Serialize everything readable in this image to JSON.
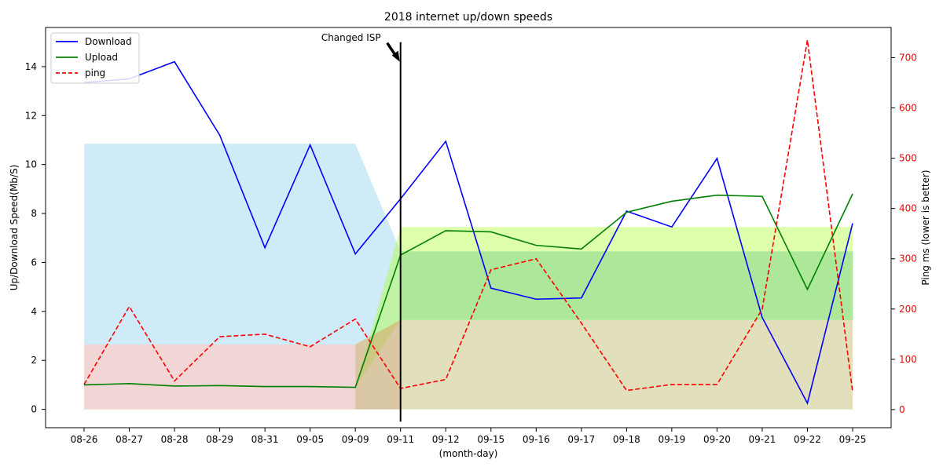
{
  "chart_data": {
    "type": "line",
    "title": "2018 internet up/down speeds",
    "xlabel": "(month-day)",
    "ylabel": "Up/Download Speed(Mb/S)",
    "y2label": "Ping ms (lower is better)",
    "categories": [
      "08-26",
      "08-27",
      "08-28",
      "08-29",
      "08-31",
      "09-05",
      "09-09",
      "09-11",
      "09-12",
      "09-15",
      "09-16",
      "09-17",
      "09-18",
      "09-19",
      "09-20",
      "09-21",
      "09-22",
      "09-25"
    ],
    "ylim": [
      -0.75,
      15.6
    ],
    "y2lim": [
      -36,
      760
    ],
    "yticks": [
      0,
      2,
      4,
      6,
      8,
      10,
      12,
      14
    ],
    "y2ticks": [
      0,
      100,
      200,
      300,
      400,
      500,
      600,
      700
    ],
    "series": [
      {
        "name": "Download",
        "axis": "left",
        "color": "#0000ff",
        "dash": "solid",
        "values": [
          13.35,
          13.5,
          14.2,
          11.2,
          6.6,
          10.8,
          6.35,
          8.6,
          10.95,
          4.95,
          4.5,
          4.55,
          8.1,
          7.45,
          10.25,
          3.75,
          0.25,
          7.6
        ]
      },
      {
        "name": "Upload",
        "axis": "left",
        "color": "#008000",
        "dash": "solid",
        "values": [
          1.0,
          1.05,
          0.95,
          0.97,
          0.93,
          0.93,
          0.9,
          6.3,
          7.3,
          7.25,
          6.7,
          6.55,
          8.05,
          8.5,
          8.75,
          8.7,
          4.9,
          8.8
        ]
      },
      {
        "name": "ping",
        "axis": "right",
        "color": "#ff0000",
        "dash": "dashed",
        "values": [
          50,
          205,
          57,
          145,
          150,
          125,
          180,
          42,
          60,
          278,
          300,
          172,
          38,
          50,
          50,
          200,
          735,
          35
        ]
      }
    ],
    "bands": [
      {
        "axis": "left",
        "color": "#87ceeb",
        "opacity": 0.4,
        "from": 0,
        "to": 7,
        "low": [
          2.65,
          2.65,
          2.65,
          2.65,
          2.65,
          2.65,
          2.65,
          3.65
        ],
        "high": [
          10.85,
          10.85,
          10.85,
          10.85,
          10.85,
          10.85,
          10.85,
          6.45
        ]
      },
      {
        "axis": "left",
        "color": "#adff2f",
        "opacity": 0.4,
        "from": 6,
        "to": 17,
        "low": [
          0.9,
          3.65,
          3.65,
          3.65,
          3.65,
          3.65,
          3.65,
          3.65,
          3.65,
          3.65,
          3.65,
          3.65
        ],
        "high": [
          0.9,
          7.45,
          7.45,
          7.45,
          7.45,
          7.45,
          7.45,
          7.45,
          7.45,
          7.45,
          7.45,
          7.45
        ]
      },
      {
        "axis": "left",
        "color": "#cd5c5c",
        "opacity": 0.25,
        "from": 0,
        "to": 7,
        "low": [
          0,
          0,
          0,
          0,
          0,
          0,
          0,
          0
        ],
        "high": [
          2.65,
          2.65,
          2.65,
          2.65,
          2.65,
          2.65,
          2.65,
          3.65
        ]
      },
      {
        "axis": "left",
        "color": "#bdb76b",
        "opacity": 0.45,
        "from": 6,
        "to": 17,
        "low": [
          0,
          0,
          0,
          0,
          0,
          0,
          0,
          0,
          0,
          0,
          0,
          0
        ],
        "high": [
          2.65,
          3.65,
          3.65,
          3.65,
          3.65,
          3.65,
          3.65,
          3.65,
          3.65,
          3.65,
          3.65,
          3.65
        ]
      },
      {
        "axis": "left",
        "color": "#3cb371",
        "opacity": 0.3,
        "from": 7,
        "to": 17,
        "low": [
          3.65,
          3.65,
          3.65,
          3.65,
          3.65,
          3.65,
          3.65,
          3.65,
          3.65,
          3.65,
          3.65
        ],
        "high": [
          6.45,
          6.45,
          6.45,
          6.45,
          6.45,
          6.45,
          6.45,
          6.45,
          6.45,
          6.45,
          6.45
        ]
      }
    ],
    "annotation": {
      "text": "Changed ISP",
      "category_index": 7,
      "line_y": [
        -0.5,
        15.0
      ],
      "arrow_target_y": 14.2
    },
    "legend": {
      "position": "top-left",
      "entries": [
        "Download",
        "Upload",
        "ping"
      ]
    },
    "grid": false
  }
}
